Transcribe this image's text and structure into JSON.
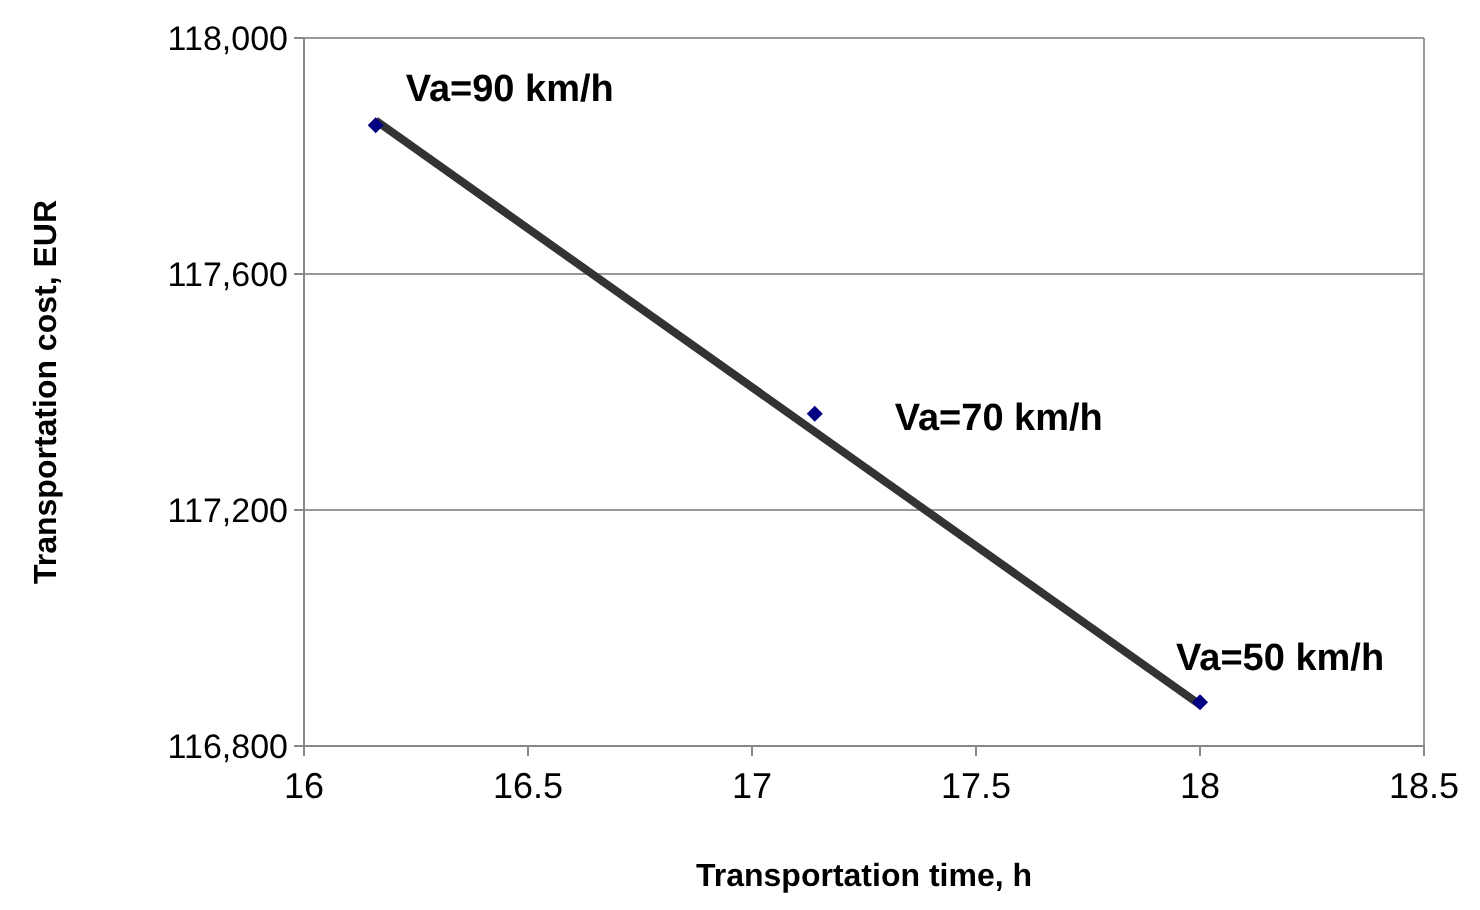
{
  "chart_data": {
    "type": "scatter",
    "xlabel": "Transportation time, h",
    "ylabel": "Transportation cost, EUR",
    "xlim": [
      16,
      18.5
    ],
    "xticks": [
      16,
      16.5,
      17,
      17.5,
      18,
      18.5
    ],
    "ylim": [
      116800,
      118000
    ],
    "yticks": [
      {
        "value": 116800,
        "label": "116,800"
      },
      {
        "value": 117200,
        "label": "117,200"
      },
      {
        "value": 117600,
        "label": "117,600"
      },
      {
        "value": 118000,
        "label": "118,000"
      }
    ],
    "grid": "y",
    "marker": "diamond",
    "x": [
      16.16,
      17.14,
      18.0
    ],
    "series": [
      {
        "type": "line",
        "color": "#333333",
        "x": [
          16.16,
          18.0
        ],
        "values": [
          117860,
          116870
        ],
        "marker": "none",
        "line_style": "solid"
      },
      {
        "color": "#000080",
        "values": [
          117852,
          117363,
          116874
        ]
      }
    ],
    "annotations": [
      {
        "text": "Va=90 km/h",
        "x": 16.16,
        "y": 117852
      },
      {
        "text": "Va=70 km/h",
        "x": 17.14,
        "y": 117363
      },
      {
        "text": "Va=50 km/h",
        "x": 18.0,
        "y": 116874
      }
    ]
  }
}
